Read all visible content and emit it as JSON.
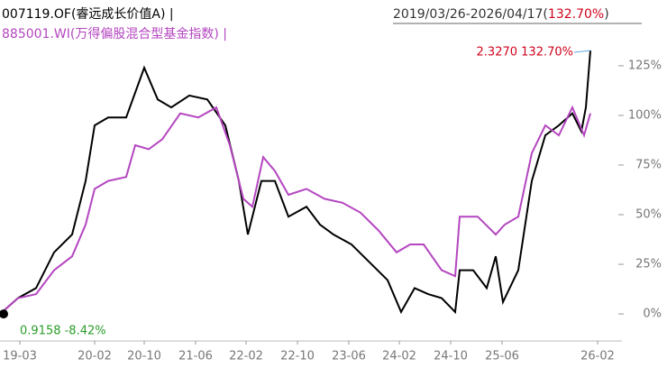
{
  "chart_data": {
    "type": "line",
    "title": "007119.OF(睿远成长价值A) |",
    "subtitle": "885001.WI(万得偏股混合型基金指数) |",
    "range_label": "2019/03/26-2026/04/17(",
    "range_return": "132.70%",
    "range_close": ")",
    "annotations": [
      "2.3270 132.70%",
      "0.9158 -8.42%"
    ],
    "xlim": [
      0,
      690
    ],
    "xticks": [
      {
        "value": 22,
        "label": "19-03"
      },
      {
        "value": 105,
        "label": "20-02"
      },
      {
        "value": 160,
        "label": "20-10"
      },
      {
        "value": 217,
        "label": "21-06"
      },
      {
        "value": 273,
        "label": "22-02"
      },
      {
        "value": 330,
        "label": "22-10"
      },
      {
        "value": 387,
        "label": "23-06"
      },
      {
        "value": 443,
        "label": "24-02"
      },
      {
        "value": 500,
        "label": "24-10"
      },
      {
        "value": 557,
        "label": "25-06"
      },
      {
        "value": 663,
        "label": "26-02"
      }
    ],
    "ylim": [
      -13.6,
      144.5
    ],
    "yticks": [
      {
        "value": 0,
        "label": "0%"
      },
      {
        "value": 25,
        "label": "25%"
      },
      {
        "value": 50,
        "label": "50%"
      },
      {
        "value": 75,
        "label": "75%"
      },
      {
        "value": 100,
        "label": "100%"
      },
      {
        "value": 125,
        "label": "125%"
      }
    ],
    "series": [
      {
        "name": "007119.OF",
        "color": "#000000",
        "x": [
          0,
          20,
          40,
          60,
          80,
          95,
          105,
          120,
          140,
          160,
          175,
          190,
          210,
          230,
          250,
          265,
          275,
          290,
          305,
          320,
          340,
          355,
          370,
          390,
          410,
          430,
          445,
          460,
          475,
          490,
          505,
          510,
          525,
          540,
          550,
          558,
          575,
          590,
          605,
          620,
          635,
          645,
          650,
          655
        ],
        "values": [
          0,
          8,
          13,
          31,
          40,
          67,
          95,
          99,
          99,
          124,
          108,
          104,
          110,
          108,
          95,
          67,
          40,
          67,
          67,
          49,
          54,
          45,
          40,
          35,
          26,
          17,
          1,
          13,
          10,
          8,
          1,
          22,
          22,
          13,
          29,
          6,
          22,
          67,
          90,
          95,
          101,
          92,
          104,
          132.7
        ]
      },
      {
        "name": "885001.WI",
        "color": "#b446c0",
        "x": [
          0,
          20,
          40,
          60,
          80,
          95,
          105,
          120,
          140,
          150,
          165,
          180,
          200,
          220,
          240,
          255,
          270,
          280,
          292,
          305,
          320,
          340,
          360,
          380,
          400,
          420,
          440,
          455,
          470,
          490,
          505,
          510,
          530,
          550,
          560,
          575,
          590,
          605,
          620,
          635,
          648,
          655
        ],
        "values": [
          0,
          8,
          10,
          22,
          29,
          45,
          63,
          67,
          69,
          85,
          83,
          88,
          101,
          99,
          104,
          85,
          58,
          54,
          79,
          72,
          60,
          63,
          58,
          56,
          51,
          42,
          31,
          35,
          35,
          22,
          19,
          49,
          49,
          40,
          45,
          49,
          81,
          95,
          90,
          104,
          90,
          101
        ]
      }
    ]
  }
}
